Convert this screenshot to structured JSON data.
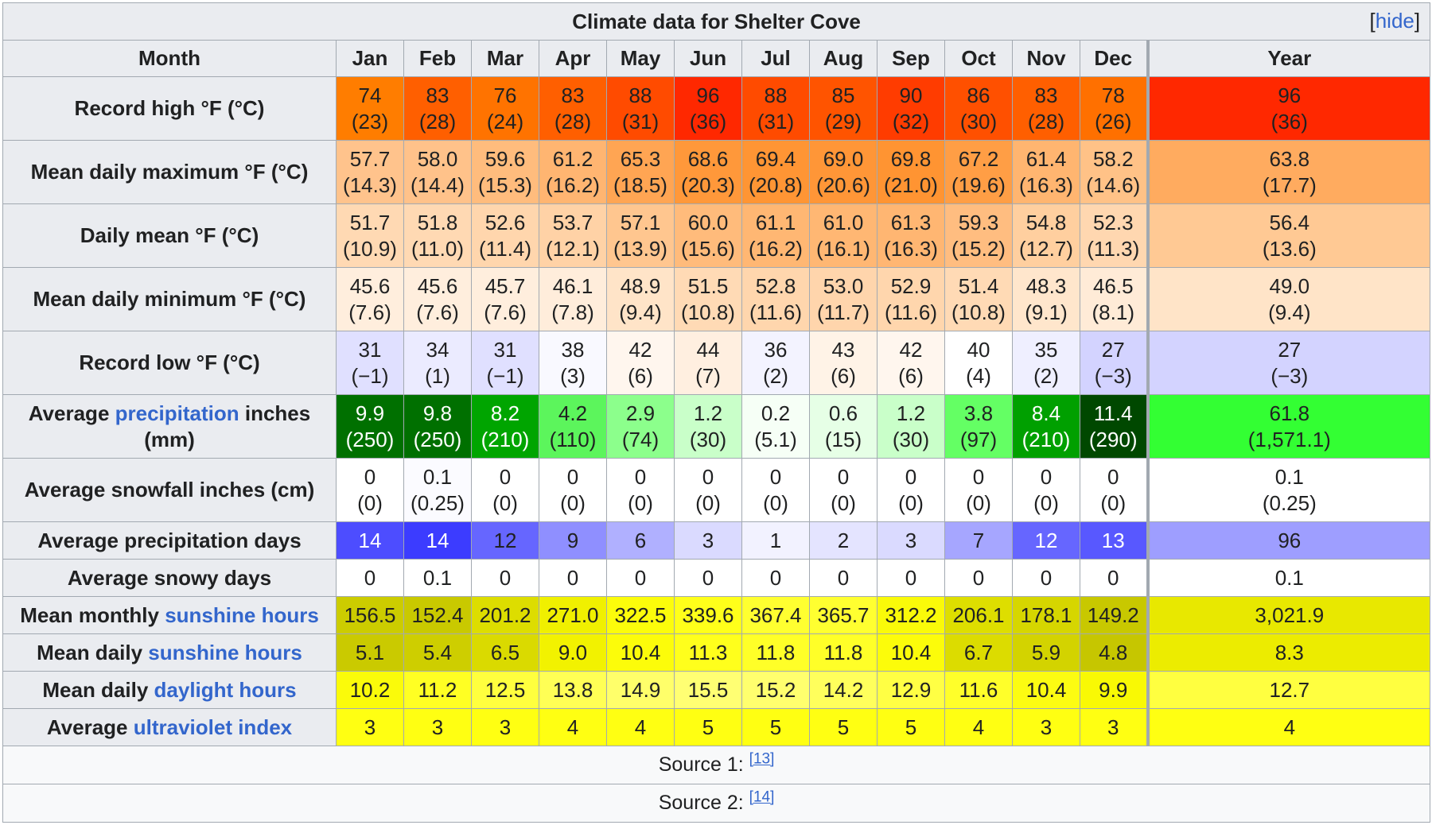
{
  "table": {
    "caption": "Climate data for Shelter Cove",
    "hide_label": "hide",
    "header_label": "Month",
    "months": [
      "Jan",
      "Feb",
      "Mar",
      "Apr",
      "May",
      "Jun",
      "Jul",
      "Aug",
      "Sep",
      "Oct",
      "Nov",
      "Dec"
    ],
    "year_label": "Year",
    "rows": [
      {
        "label_pre": "Record high °F (°C)",
        "link": "",
        "label_post": "",
        "two_line": true,
        "cells": [
          [
            "74",
            "(23)"
          ],
          [
            "83",
            "(28)"
          ],
          [
            "76",
            "(24)"
          ],
          [
            "83",
            "(28)"
          ],
          [
            "88",
            "(31)"
          ],
          [
            "96",
            "(36)"
          ],
          [
            "88",
            "(31)"
          ],
          [
            "85",
            "(29)"
          ],
          [
            "90",
            "(32)"
          ],
          [
            "86",
            "(30)"
          ],
          [
            "83",
            "(28)"
          ],
          [
            "78",
            "(26)"
          ]
        ],
        "year": [
          "96",
          "(36)"
        ],
        "colors": [
          "#ff7d00",
          "#ff5f00",
          "#ff7300",
          "#ff5f00",
          "#ff4b00",
          "#ff2800",
          "#ff4b00",
          "#ff5400",
          "#ff3c00",
          "#ff5000",
          "#ff5f00",
          "#ff7000"
        ],
        "year_color": "#ff2800",
        "text_colors": [],
        "year_text_color": ""
      },
      {
        "label_pre": "Mean daily maximum °F (°C)",
        "link": "",
        "label_post": "",
        "two_line": true,
        "cells": [
          [
            "57.7",
            "(14.3)"
          ],
          [
            "58.0",
            "(14.4)"
          ],
          [
            "59.6",
            "(15.3)"
          ],
          [
            "61.2",
            "(16.2)"
          ],
          [
            "65.3",
            "(18.5)"
          ],
          [
            "68.6",
            "(20.3)"
          ],
          [
            "69.4",
            "(20.8)"
          ],
          [
            "69.0",
            "(20.6)"
          ],
          [
            "69.8",
            "(21.0)"
          ],
          [
            "67.2",
            "(19.6)"
          ],
          [
            "61.4",
            "(16.3)"
          ],
          [
            "58.2",
            "(14.6)"
          ]
        ],
        "year": [
          "63.8",
          "(17.7)"
        ],
        "colors": [
          "#ffc38c",
          "#ffc28a",
          "#ffbc7d",
          "#ffb571",
          "#ffa553",
          "#ff983a",
          "#ff9534",
          "#ff9637",
          "#ff9432",
          "#ff9e45",
          "#ffb570",
          "#ffc287"
        ],
        "year_color": "#ffab5f",
        "text_colors": [],
        "year_text_color": ""
      },
      {
        "label_pre": "Daily mean °F (°C)",
        "link": "",
        "label_post": "",
        "two_line": true,
        "cells": [
          [
            "51.7",
            "(10.9)"
          ],
          [
            "51.8",
            "(11.0)"
          ],
          [
            "52.6",
            "(11.4)"
          ],
          [
            "53.7",
            "(12.1)"
          ],
          [
            "57.1",
            "(13.9)"
          ],
          [
            "60.0",
            "(15.6)"
          ],
          [
            "61.1",
            "(16.2)"
          ],
          [
            "61.0",
            "(16.1)"
          ],
          [
            "61.3",
            "(16.3)"
          ],
          [
            "59.3",
            "(15.2)"
          ],
          [
            "54.8",
            "(12.7)"
          ],
          [
            "52.3",
            "(11.3)"
          ]
        ],
        "year": [
          "56.4",
          "(13.6)"
        ],
        "colors": [
          "#ffd9b3",
          "#ffd9b3",
          "#ffd6ad",
          "#ffd2a6",
          "#ffc68f",
          "#ffbb7b",
          "#ffb773",
          "#ffb773",
          "#ffb672",
          "#ffbd80",
          "#ffcf9f",
          "#ffd7b0"
        ],
        "year_color": "#ffc994",
        "text_colors": [],
        "year_text_color": ""
      },
      {
        "label_pre": "Mean daily minimum °F (°C)",
        "link": "",
        "label_post": "",
        "two_line": true,
        "cells": [
          [
            "45.6",
            "(7.6)"
          ],
          [
            "45.6",
            "(7.6)"
          ],
          [
            "45.7",
            "(7.6)"
          ],
          [
            "46.1",
            "(7.8)"
          ],
          [
            "48.9",
            "(9.4)"
          ],
          [
            "51.5",
            "(10.8)"
          ],
          [
            "52.8",
            "(11.6)"
          ],
          [
            "53.0",
            "(11.7)"
          ],
          [
            "52.9",
            "(11.6)"
          ],
          [
            "51.4",
            "(10.8)"
          ],
          [
            "48.3",
            "(9.1)"
          ],
          [
            "46.5",
            "(8.1)"
          ]
        ],
        "year": [
          "49.0",
          "(9.4)"
        ],
        "colors": [
          "#ffeedd",
          "#ffeedd",
          "#ffeedd",
          "#ffeddb",
          "#ffe4c8",
          "#ffdab5",
          "#ffd6ad",
          "#ffd5ac",
          "#ffd6ad",
          "#ffdab5",
          "#ffe6cc",
          "#ffebd7"
        ],
        "year_color": "#ffe4c8",
        "text_colors": [],
        "year_text_color": ""
      },
      {
        "label_pre": "Record low °F (°C)",
        "link": "",
        "label_post": "",
        "two_line": true,
        "cells": [
          [
            "31",
            "(−1)"
          ],
          [
            "34",
            "(1)"
          ],
          [
            "31",
            "(−1)"
          ],
          [
            "38",
            "(3)"
          ],
          [
            "42",
            "(6)"
          ],
          [
            "44",
            "(7)"
          ],
          [
            "36",
            "(2)"
          ],
          [
            "43",
            "(6)"
          ],
          [
            "42",
            "(6)"
          ],
          [
            "40",
            "(4)"
          ],
          [
            "35",
            "(2)"
          ],
          [
            "27",
            "(−3)"
          ]
        ],
        "year": [
          "27",
          "(−3)"
        ],
        "colors": [
          "#e0e0ff",
          "#ebebff",
          "#e0e0ff",
          "#f9f9ff",
          "#fff6ee",
          "#ffefe0",
          "#f3f3ff",
          "#fff3e7",
          "#fff6ee",
          "#ffffff",
          "#efefff",
          "#d3d3ff"
        ],
        "year_color": "#d3d3ff",
        "text_colors": [],
        "year_text_color": ""
      },
      {
        "label_pre": "Average ",
        "link": "precipitation",
        "label_post": " inches (mm)",
        "two_line": true,
        "cells": [
          [
            "9.9",
            "(250)"
          ],
          [
            "9.8",
            "(250)"
          ],
          [
            "8.2",
            "(210)"
          ],
          [
            "4.2",
            "(110)"
          ],
          [
            "2.9",
            "(74)"
          ],
          [
            "1.2",
            "(30)"
          ],
          [
            "0.2",
            "(5.1)"
          ],
          [
            "0.6",
            "(15)"
          ],
          [
            "1.2",
            "(30)"
          ],
          [
            "3.8",
            "(97)"
          ],
          [
            "8.4",
            "(210)"
          ],
          [
            "11.4",
            "(290)"
          ]
        ],
        "year": [
          "61.8",
          "(1,571.1)"
        ],
        "colors": [
          "#007000",
          "#007000",
          "#00a500",
          "#5cf55c",
          "#8cff8c",
          "#c9ffc9",
          "#f6fff6",
          "#e6ffe6",
          "#c9ffc9",
          "#64ff64",
          "#00a000",
          "#004800"
        ],
        "year_color": "#33ff33",
        "text_colors": [
          "#ffffff",
          "#ffffff",
          "#ffffff",
          "#202122",
          "#202122",
          "#202122",
          "#202122",
          "#202122",
          "#202122",
          "#202122",
          "#ffffff",
          "#ffffff"
        ],
        "year_text_color": "#202122"
      },
      {
        "label_pre": "Average snowfall inches (cm)",
        "link": "",
        "label_post": "",
        "two_line": true,
        "cells": [
          [
            "0",
            "(0)"
          ],
          [
            "0.1",
            "(0.25)"
          ],
          [
            "0",
            "(0)"
          ],
          [
            "0",
            "(0)"
          ],
          [
            "0",
            "(0)"
          ],
          [
            "0",
            "(0)"
          ],
          [
            "0",
            "(0)"
          ],
          [
            "0",
            "(0)"
          ],
          [
            "0",
            "(0)"
          ],
          [
            "0",
            "(0)"
          ],
          [
            "0",
            "(0)"
          ],
          [
            "0",
            "(0)"
          ]
        ],
        "year": [
          "0.1",
          "(0.25)"
        ],
        "colors": [
          "#ffffff",
          "#fbfbff",
          "#ffffff",
          "#ffffff",
          "#ffffff",
          "#ffffff",
          "#ffffff",
          "#ffffff",
          "#ffffff",
          "#ffffff",
          "#ffffff",
          "#ffffff"
        ],
        "year_color": "#ffffff",
        "text_colors": [],
        "year_text_color": ""
      },
      {
        "label_pre": "Average precipitation days",
        "link": "",
        "label_post": "",
        "two_line": false,
        "cells": [
          [
            "14"
          ],
          [
            "14"
          ],
          [
            "12"
          ],
          [
            "9"
          ],
          [
            "6"
          ],
          [
            "3"
          ],
          [
            "1"
          ],
          [
            "2"
          ],
          [
            "3"
          ],
          [
            "7"
          ],
          [
            "12"
          ],
          [
            "13"
          ]
        ],
        "year": [
          "96"
        ],
        "colors": [
          "#4d4dff",
          "#3c3cff",
          "#6666ff",
          "#8f8fff",
          "#b0b0ff",
          "#dadaff",
          "#f2f2ff",
          "#e4e4ff",
          "#dadaff",
          "#a6a6ff",
          "#6666ff",
          "#5858ff"
        ],
        "year_color": "#9e9eff",
        "text_colors": [
          "#ffffff",
          "#ffffff",
          "#202122",
          "#202122",
          "#202122",
          "#202122",
          "#202122",
          "#202122",
          "#202122",
          "#202122",
          "#ffffff",
          "#ffffff"
        ],
        "year_text_color": "#202122"
      },
      {
        "label_pre": "Average snowy days",
        "link": "",
        "label_post": "",
        "two_line": false,
        "cells": [
          [
            "0"
          ],
          [
            "0.1"
          ],
          [
            "0"
          ],
          [
            "0"
          ],
          [
            "0"
          ],
          [
            "0"
          ],
          [
            "0"
          ],
          [
            "0"
          ],
          [
            "0"
          ],
          [
            "0"
          ],
          [
            "0"
          ],
          [
            "0"
          ]
        ],
        "year": [
          "0.1"
        ],
        "colors": [
          "#ffffff",
          "#ffffff",
          "#ffffff",
          "#ffffff",
          "#ffffff",
          "#ffffff",
          "#ffffff",
          "#ffffff",
          "#ffffff",
          "#ffffff",
          "#ffffff",
          "#ffffff"
        ],
        "year_color": "#ffffff",
        "text_colors": [],
        "year_text_color": ""
      },
      {
        "label_pre": "Mean monthly ",
        "link": "sunshine hours",
        "label_post": "",
        "two_line": false,
        "cells": [
          [
            "156.5"
          ],
          [
            "152.4"
          ],
          [
            "201.2"
          ],
          [
            "271.0"
          ],
          [
            "322.5"
          ],
          [
            "339.6"
          ],
          [
            "367.4"
          ],
          [
            "365.7"
          ],
          [
            "312.2"
          ],
          [
            "206.1"
          ],
          [
            "178.1"
          ],
          [
            "149.2"
          ]
        ],
        "year": [
          "3,021.9"
        ],
        "colors": [
          "#cccc00",
          "#c9c900",
          "#dddd00",
          "#f0f000",
          "#fcfc0b",
          "#ffff1a",
          "#ffff30",
          "#ffff30",
          "#fafa09",
          "#dede00",
          "#d6d600",
          "#c8c800"
        ],
        "year_color": "#e8e800",
        "text_colors": [],
        "year_text_color": ""
      },
      {
        "label_pre": "Mean daily ",
        "link": "sunshine hours",
        "label_post": "",
        "two_line": false,
        "cells": [
          [
            "5.1"
          ],
          [
            "5.4"
          ],
          [
            "6.5"
          ],
          [
            "9.0"
          ],
          [
            "10.4"
          ],
          [
            "11.3"
          ],
          [
            "11.8"
          ],
          [
            "11.8"
          ],
          [
            "10.4"
          ],
          [
            "6.7"
          ],
          [
            "5.9"
          ],
          [
            "4.8"
          ]
        ],
        "year": [
          "8.3"
        ],
        "colors": [
          "#caca00",
          "#cece00",
          "#dada00",
          "#f2f200",
          "#fcfc0a",
          "#ffff1c",
          "#ffff28",
          "#ffff28",
          "#fcfc0a",
          "#dcdc00",
          "#d3d300",
          "#c6c600"
        ],
        "year_color": "#ecec00",
        "text_colors": [],
        "year_text_color": ""
      },
      {
        "label_pre": "Mean daily ",
        "link": "daylight hours",
        "label_post": "",
        "two_line": false,
        "cells": [
          [
            "10.2"
          ],
          [
            "11.2"
          ],
          [
            "12.5"
          ],
          [
            "13.8"
          ],
          [
            "14.9"
          ],
          [
            "15.5"
          ],
          [
            "15.2"
          ],
          [
            "14.2"
          ],
          [
            "12.9"
          ],
          [
            "11.6"
          ],
          [
            "10.4"
          ],
          [
            "9.9"
          ]
        ],
        "year": [
          "12.7"
        ],
        "colors": [
          "#fbfb0a",
          "#ffff23",
          "#ffff3e",
          "#ffff55",
          "#ffff6a",
          "#ffff73",
          "#ffff6e",
          "#ffff5c",
          "#ffff44",
          "#ffff2a",
          "#fcfc12",
          "#f9f904"
        ],
        "year_color": "#ffff40",
        "text_colors": [],
        "year_text_color": ""
      },
      {
        "label_pre": "Average ",
        "link": "ultraviolet index",
        "label_post": "",
        "two_line": false,
        "cells": [
          [
            "3"
          ],
          [
            "3"
          ],
          [
            "3"
          ],
          [
            "4"
          ],
          [
            "4"
          ],
          [
            "5"
          ],
          [
            "5"
          ],
          [
            "5"
          ],
          [
            "5"
          ],
          [
            "4"
          ],
          [
            "3"
          ],
          [
            "3"
          ]
        ],
        "year": [
          "4"
        ],
        "colors": [
          "#ffff12",
          "#ffff12",
          "#ffff12",
          "#ffff12",
          "#ffff12",
          "#ffff12",
          "#ffff12",
          "#ffff12",
          "#ffff12",
          "#ffff12",
          "#ffff12",
          "#ffff12"
        ],
        "year_color": "#ffff12",
        "text_colors": [],
        "year_text_color": ""
      }
    ],
    "sources": [
      {
        "label": "Source 1: ",
        "ref": "[13]"
      },
      {
        "label": "Source 2: ",
        "ref": "[14]"
      }
    ]
  }
}
